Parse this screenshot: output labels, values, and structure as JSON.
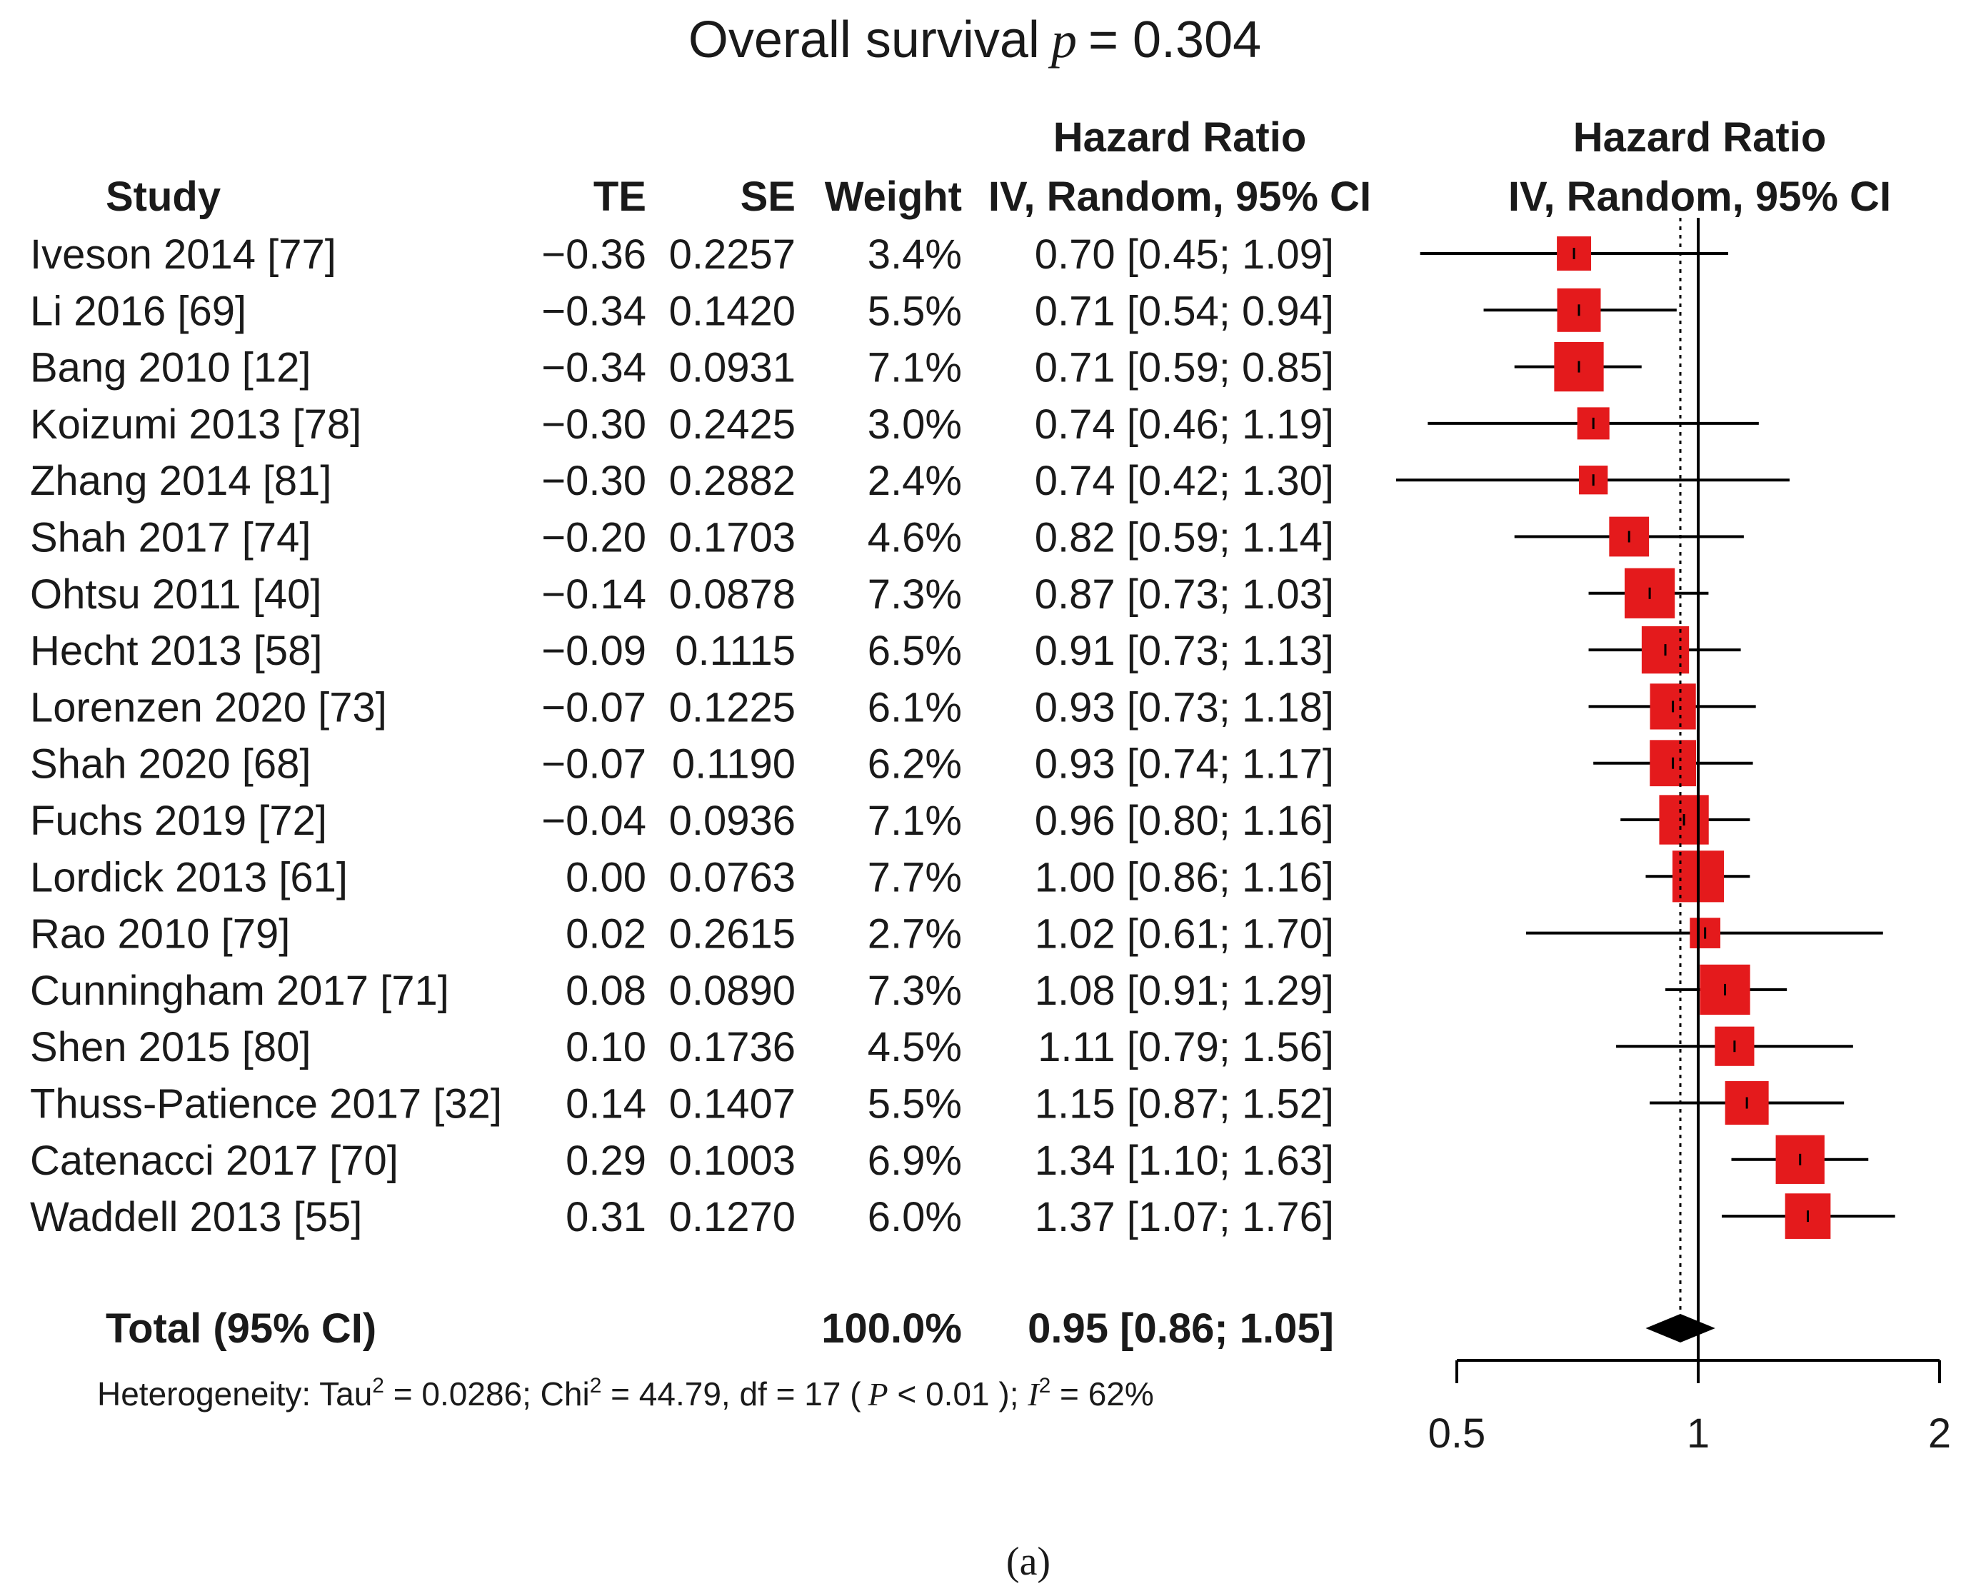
{
  "chart_data": {
    "type": "forest",
    "title": "Overall survival",
    "title_p_symbol": "p",
    "title_p_value": "= 0.304",
    "columns": {
      "study": "Study",
      "te": "TE",
      "se": "SE",
      "weight": "Weight",
      "hr_line1": "Hazard Ratio",
      "hr_line2": "IV, Random, 95% CI"
    },
    "plot_header": {
      "line1": "Hazard Ratio",
      "line2": "IV, Random, 95% CI"
    },
    "studies": [
      {
        "label": "Iveson 2014 [77]",
        "te": "−0.36",
        "se": "0.2257",
        "weight": "3.4%",
        "ci_text": "0.70 [0.45; 1.09]",
        "hr": 0.7,
        "lower": 0.45,
        "upper": 1.09,
        "w": 3.4
      },
      {
        "label": "Li 2016 [69]",
        "te": "−0.34",
        "se": "0.1420",
        "weight": "5.5%",
        "ci_text": "0.71 [0.54; 0.94]",
        "hr": 0.71,
        "lower": 0.54,
        "upper": 0.94,
        "w": 5.5
      },
      {
        "label": "Bang 2010 [12]",
        "te": "−0.34",
        "se": "0.0931",
        "weight": "7.1%",
        "ci_text": "0.71 [0.59; 0.85]",
        "hr": 0.71,
        "lower": 0.59,
        "upper": 0.85,
        "w": 7.1
      },
      {
        "label": "Koizumi 2013 [78]",
        "te": "−0.30",
        "se": "0.2425",
        "weight": "3.0%",
        "ci_text": "0.74 [0.46; 1.19]",
        "hr": 0.74,
        "lower": 0.46,
        "upper": 1.19,
        "w": 3.0
      },
      {
        "label": "Zhang 2014 [81]",
        "te": "−0.30",
        "se": "0.2882",
        "weight": "2.4%",
        "ci_text": "0.74 [0.42; 1.30]",
        "hr": 0.74,
        "lower": 0.42,
        "upper": 1.3,
        "w": 2.4
      },
      {
        "label": "Shah 2017 [74]",
        "te": "−0.20",
        "se": "0.1703",
        "weight": "4.6%",
        "ci_text": "0.82 [0.59; 1.14]",
        "hr": 0.82,
        "lower": 0.59,
        "upper": 1.14,
        "w": 4.6
      },
      {
        "label": "Ohtsu 2011 [40]",
        "te": "−0.14",
        "se": "0.0878",
        "weight": "7.3%",
        "ci_text": "0.87 [0.73; 1.03]",
        "hr": 0.87,
        "lower": 0.73,
        "upper": 1.03,
        "w": 7.3
      },
      {
        "label": "Hecht 2013 [58]",
        "te": "−0.09",
        "se": "0.1115",
        "weight": "6.5%",
        "ci_text": "0.91 [0.73; 1.13]",
        "hr": 0.91,
        "lower": 0.73,
        "upper": 1.13,
        "w": 6.5
      },
      {
        "label": "Lorenzen 2020 [73]",
        "te": "−0.07",
        "se": "0.1225",
        "weight": "6.1%",
        "ci_text": "0.93 [0.73; 1.18]",
        "hr": 0.93,
        "lower": 0.73,
        "upper": 1.18,
        "w": 6.1
      },
      {
        "label": "Shah 2020 [68]",
        "te": "−0.07",
        "se": "0.1190",
        "weight": "6.2%",
        "ci_text": "0.93 [0.74; 1.17]",
        "hr": 0.93,
        "lower": 0.74,
        "upper": 1.17,
        "w": 6.2
      },
      {
        "label": "Fuchs 2019 [72]",
        "te": "−0.04",
        "se": "0.0936",
        "weight": "7.1%",
        "ci_text": "0.96 [0.80; 1.16]",
        "hr": 0.96,
        "lower": 0.8,
        "upper": 1.16,
        "w": 7.1
      },
      {
        "label": "Lordick 2013 [61]",
        "te": "0.00",
        "se": "0.0763",
        "weight": "7.7%",
        "ci_text": "1.00 [0.86; 1.16]",
        "hr": 1.0,
        "lower": 0.86,
        "upper": 1.16,
        "w": 7.7
      },
      {
        "label": "Rao 2010 [79]",
        "te": "0.02",
        "se": "0.2615",
        "weight": "2.7%",
        "ci_text": "1.02 [0.61; 1.70]",
        "hr": 1.02,
        "lower": 0.61,
        "upper": 1.7,
        "w": 2.7
      },
      {
        "label": "Cunningham 2017 [71]",
        "te": "0.08",
        "se": "0.0890",
        "weight": "7.3%",
        "ci_text": "1.08 [0.91; 1.29]",
        "hr": 1.08,
        "lower": 0.91,
        "upper": 1.29,
        "w": 7.3
      },
      {
        "label": "Shen 2015 [80]",
        "te": "0.10",
        "se": "0.1736",
        "weight": "4.5%",
        "ci_text": "1.11 [0.79; 1.56]",
        "hr": 1.11,
        "lower": 0.79,
        "upper": 1.56,
        "w": 4.5
      },
      {
        "label": "Thuss-Patience 2017 [32]",
        "te": "0.14",
        "se": "0.1407",
        "weight": "5.5%",
        "ci_text": "1.15 [0.87; 1.52]",
        "hr": 1.15,
        "lower": 0.87,
        "upper": 1.52,
        "w": 5.5
      },
      {
        "label": "Catenacci 2017 [70]",
        "te": "0.29",
        "se": "0.1003",
        "weight": "6.9%",
        "ci_text": "1.34 [1.10; 1.63]",
        "hr": 1.34,
        "lower": 1.1,
        "upper": 1.63,
        "w": 6.9
      },
      {
        "label": "Waddell 2013 [55]",
        "te": "0.31",
        "se": "0.1270",
        "weight": "6.0%",
        "ci_text": "1.37 [1.07; 1.76]",
        "hr": 1.37,
        "lower": 1.07,
        "upper": 1.76,
        "w": 6.0
      }
    ],
    "total": {
      "label": "Total (95% CI)",
      "weight": "100.0%",
      "ci_text": "0.95 [0.86; 1.05]",
      "hr": 0.95,
      "lower": 0.86,
      "upper": 1.05
    },
    "heterogeneity": {
      "prefix": "Heterogeneity: Tau",
      "tau_sup": "2",
      "mid1": " = 0.0286; Chi",
      "chi_sup": "2",
      "mid2": " = 44.79, df = 17 (",
      "p_symbol": "P",
      "p_text": " < 0.01 ); ",
      "i_symbol": "I",
      "i_sup": "2",
      "i_text": " = 62%"
    },
    "x_axis": {
      "scale": "log",
      "min": 0.5,
      "max": 2,
      "ticks": [
        0.5,
        1,
        2
      ],
      "tick_labels": [
        "0.5",
        "1",
        "2"
      ],
      "reference": 1
    },
    "caption": "(a)",
    "colors": {
      "box": "#e41a1c",
      "line": "#000000",
      "diamond": "#000000",
      "pooled_line": "#000000"
    }
  }
}
